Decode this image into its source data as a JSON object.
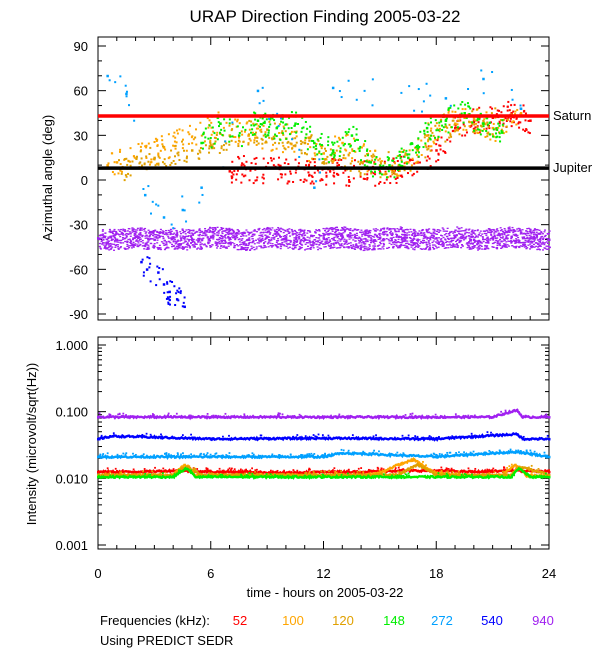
{
  "title": "URAP Direction Finding  2005-03-22",
  "xlabel": "time - hours on 2005-03-22",
  "freq_label": "Frequencies (kHz):",
  "source_note": "Using PREDICT SEDR",
  "frequencies": [
    {
      "label": "52",
      "color": "#ff0000"
    },
    {
      "label": "100",
      "color": "#ffa500"
    },
    {
      "label": "120",
      "color": "#e0a000"
    },
    {
      "label": "148",
      "color": "#00ee00"
    },
    {
      "label": "272",
      "color": "#00a0ff"
    },
    {
      "label": "540",
      "color": "#0000ff"
    },
    {
      "label": "940",
      "color": "#a020f0"
    }
  ],
  "chart_data": [
    {
      "type": "scatter",
      "title": "URAP Direction Finding  2005-03-22",
      "xlabel": "time - hours on 2005-03-22",
      "ylabel": "Azimuthal angle (deg)",
      "xlim": [
        0,
        24
      ],
      "ylim": [
        -90,
        90
      ],
      "xticks": [
        "0",
        "6",
        "12",
        "18",
        "24"
      ],
      "yticks": [
        "90",
        "60",
        "30",
        "0",
        "-30",
        "-60",
        "-90"
      ],
      "reference_lines": [
        {
          "name": "Saturn",
          "y": 43,
          "color": "#ff0000"
        },
        {
          "name": "Jupiter",
          "y": 8,
          "color": "#000000"
        }
      ],
      "series": [
        {
          "name": "940 kHz",
          "color": "#a020f0",
          "x": [
            0,
            1,
            2,
            3,
            4,
            5,
            6,
            7,
            8,
            9,
            10,
            11,
            12,
            13,
            14,
            15,
            16,
            17,
            18,
            19,
            20,
            21,
            22,
            23,
            24
          ],
          "y": [
            -39,
            -40,
            -38,
            -40,
            -39,
            -40,
            -38,
            -39,
            -40,
            -38,
            -39,
            -40,
            -39,
            -38,
            -40,
            -39,
            -38,
            -40,
            -39,
            -38,
            -40,
            -39,
            -38,
            -39,
            -40
          ]
        },
        {
          "name": "540 kHz",
          "color": "#0000ff",
          "x": [
            2.3,
            2.6,
            3.2,
            3.5,
            3.8,
            4.2,
            4.6
          ],
          "y": [
            -55,
            -60,
            -62,
            -70,
            -75,
            -80,
            -85
          ]
        },
        {
          "name": "52 kHz",
          "color": "#ff0000",
          "x": [
            7,
            7.2,
            15,
            16,
            17,
            18,
            19,
            20,
            21,
            22,
            23
          ],
          "y": [
            6,
            8,
            5,
            7,
            12,
            20,
            35,
            40,
            42,
            45,
            40
          ]
        },
        {
          "name": "100 kHz",
          "color": "#ffa500",
          "x": [
            0.5,
            1,
            3.5,
            6.5,
            8,
            10,
            12,
            13,
            15,
            16.5,
            17.5,
            18.5,
            19,
            20,
            21,
            22.5
          ],
          "y": [
            10,
            12,
            22,
            38,
            30,
            28,
            18,
            25,
            10,
            12,
            30,
            40,
            38,
            42,
            35,
            45
          ]
        },
        {
          "name": "120 kHz",
          "color": "#e0a000",
          "x": [
            1,
            3,
            5,
            7,
            9,
            11,
            12.5,
            14,
            16,
            17,
            18.5,
            19.5,
            20.5,
            22
          ],
          "y": [
            8,
            15,
            20,
            30,
            34,
            25,
            18,
            12,
            10,
            20,
            36,
            42,
            38,
            44
          ]
        },
        {
          "name": "148 kHz",
          "color": "#00ee00",
          "x": [
            5.5,
            6.5,
            7.5,
            8.5,
            9.5,
            10.5,
            11.5,
            12.5,
            13.5,
            14.5,
            15.5,
            16.5,
            17.5,
            18.5,
            19.5,
            20.5,
            21.5
          ],
          "y": [
            25,
            38,
            30,
            40,
            35,
            38,
            25,
            20,
            30,
            12,
            10,
            15,
            35,
            40,
            45,
            38,
            32
          ]
        },
        {
          "name": "272 kHz",
          "color": "#00a0ff",
          "x": [
            0.5,
            1.5,
            2.5,
            3.5,
            4.5,
            5.5,
            8.5,
            11.5,
            12.5,
            18.5,
            20.5,
            22.5
          ],
          "y": [
            70,
            58,
            -10,
            -25,
            -20,
            -5,
            60,
            -5,
            62,
            55,
            68,
            48
          ]
        }
      ]
    },
    {
      "type": "scatter",
      "xlabel": "time - hours on 2005-03-22",
      "ylabel": "Intensity (microvolt/sqrt(Hz))",
      "yscale": "log",
      "xlim": [
        0,
        24
      ],
      "ylim": [
        0.001,
        1.0
      ],
      "xticks": [
        "0",
        "6",
        "12",
        "18",
        "24"
      ],
      "yticks": [
        "1.000",
        "0.100",
        "0.010",
        "0.001"
      ],
      "series": [
        {
          "name": "940 kHz",
          "color": "#a020f0",
          "x": [
            0,
            6,
            12,
            18,
            21,
            22.3,
            22.6,
            24
          ],
          "y": [
            0.083,
            0.083,
            0.083,
            0.083,
            0.083,
            0.105,
            0.083,
            0.083
          ]
        },
        {
          "name": "540 kHz",
          "color": "#0000ff",
          "x": [
            0,
            0.8,
            6,
            12,
            18,
            22.3,
            22.6,
            24
          ],
          "y": [
            0.039,
            0.043,
            0.039,
            0.04,
            0.039,
            0.046,
            0.039,
            0.039
          ]
        },
        {
          "name": "272 kHz",
          "color": "#00a0ff",
          "x": [
            0,
            6,
            12,
            13,
            18,
            22.3,
            24
          ],
          "y": [
            0.021,
            0.021,
            0.021,
            0.024,
            0.021,
            0.025,
            0.021
          ]
        },
        {
          "name": "52 kHz",
          "color": "#ff0000",
          "x": [
            0,
            2,
            4,
            6,
            8,
            10,
            12,
            14,
            16,
            18,
            20,
            22,
            24
          ],
          "y": [
            0.0125,
            0.0125,
            0.013,
            0.0125,
            0.0125,
            0.012,
            0.0125,
            0.0125,
            0.013,
            0.013,
            0.0125,
            0.013,
            0.0125
          ]
        },
        {
          "name": "100 kHz",
          "color": "#ffa500",
          "x": [
            0,
            2,
            4,
            4.6,
            5.2,
            6,
            8,
            10,
            12,
            14,
            15,
            16,
            16.8,
            17.5,
            18,
            20,
            21.5,
            22.2,
            22.8,
            24
          ],
          "y": [
            0.011,
            0.011,
            0.011,
            0.016,
            0.011,
            0.011,
            0.011,
            0.011,
            0.011,
            0.011,
            0.012,
            0.016,
            0.019,
            0.014,
            0.012,
            0.011,
            0.011,
            0.016,
            0.011,
            0.011
          ]
        },
        {
          "name": "120 kHz",
          "color": "#e0a000",
          "x": [
            0,
            4,
            4.7,
            5.5,
            12,
            16,
            17,
            18,
            22,
            22.4,
            24
          ],
          "y": [
            0.0112,
            0.0112,
            0.015,
            0.0112,
            0.0112,
            0.0112,
            0.016,
            0.0112,
            0.0112,
            0.015,
            0.0112
          ]
        },
        {
          "name": "148 kHz",
          "color": "#00ee00",
          "x": [
            0,
            2,
            4,
            4.7,
            5.2,
            6,
            8,
            10,
            12,
            14,
            16,
            18,
            20,
            22,
            22.4,
            23,
            24
          ],
          "y": [
            0.0105,
            0.0105,
            0.0105,
            0.014,
            0.0105,
            0.0105,
            0.0105,
            0.0105,
            0.0105,
            0.0105,
            0.0105,
            0.0105,
            0.0105,
            0.0105,
            0.014,
            0.0105,
            0.0105
          ]
        }
      ]
    }
  ]
}
